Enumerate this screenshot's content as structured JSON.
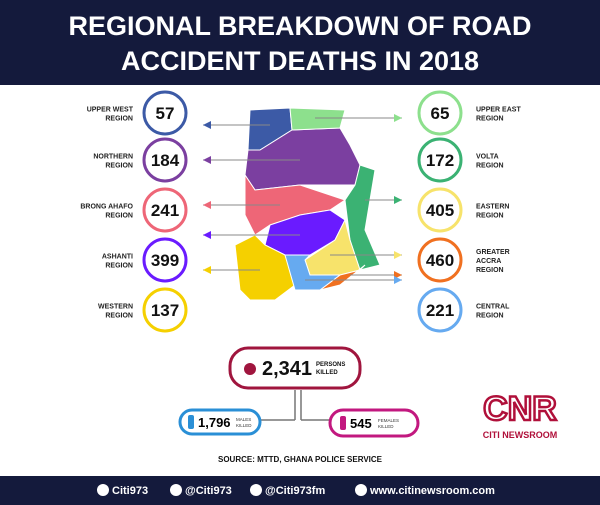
{
  "header": {
    "title_lines": [
      "REGIONAL BREAKDOWN OF ROAD",
      "ACCIDENT DEATHS IN 2018"
    ]
  },
  "regions": [
    {
      "label_lines": [
        "UPPER WEST",
        "REGION"
      ],
      "deaths": 57,
      "color": "#3c5aa6",
      "side": "left"
    },
    {
      "label_lines": [
        "NORTHERN",
        "REGION"
      ],
      "deaths": 184,
      "color": "#7b3fa0",
      "side": "left"
    },
    {
      "label_lines": [
        "BRONG AHAFO",
        "REGION"
      ],
      "deaths": 241,
      "color": "#ee6677",
      "side": "left"
    },
    {
      "label_lines": [
        "ASHANTI",
        "REGION"
      ],
      "deaths": 399,
      "color": "#6a1bff",
      "side": "left"
    },
    {
      "label_lines": [
        "WESTERN",
        "REGION"
      ],
      "deaths": 137,
      "color": "#f5d000",
      "side": "left"
    },
    {
      "label_lines": [
        "UPPER EAST",
        "REGION"
      ],
      "deaths": 65,
      "color": "#8de08d",
      "side": "right"
    },
    {
      "label_lines": [
        "VOLTA",
        "REGION"
      ],
      "deaths": 172,
      "color": "#3bb273",
      "side": "right"
    },
    {
      "label_lines": [
        "EASTERN",
        "REGION"
      ],
      "deaths": 405,
      "color": "#f7e36b",
      "side": "right"
    },
    {
      "label_lines": [
        "GREATER",
        "ACCRA",
        "REGION"
      ],
      "deaths": 460,
      "color": "#f07020",
      "side": "right"
    },
    {
      "label_lines": [
        "CENTRAL",
        "REGION"
      ],
      "deaths": 221,
      "color": "#66aaf0",
      "side": "right"
    }
  ],
  "totals": {
    "total": {
      "value": "2,341",
      "label_lines": [
        "PERSONS",
        "KILLED"
      ]
    },
    "males": {
      "value": "1,796",
      "label_lines": [
        "MALES",
        "KILLED"
      ]
    },
    "females": {
      "value": "545",
      "label_lines": [
        "FEMALES",
        "KILLED"
      ]
    }
  },
  "source": "SOURCE: MTTD, GHANA POLICE SERVICE",
  "logo": {
    "mark": "CNR",
    "name": "CITI NEWSROOM"
  },
  "footer": {
    "links": [
      "Citi973",
      "@Citi973",
      "@Citi973fm",
      "www.citinewsroom.com"
    ]
  }
}
